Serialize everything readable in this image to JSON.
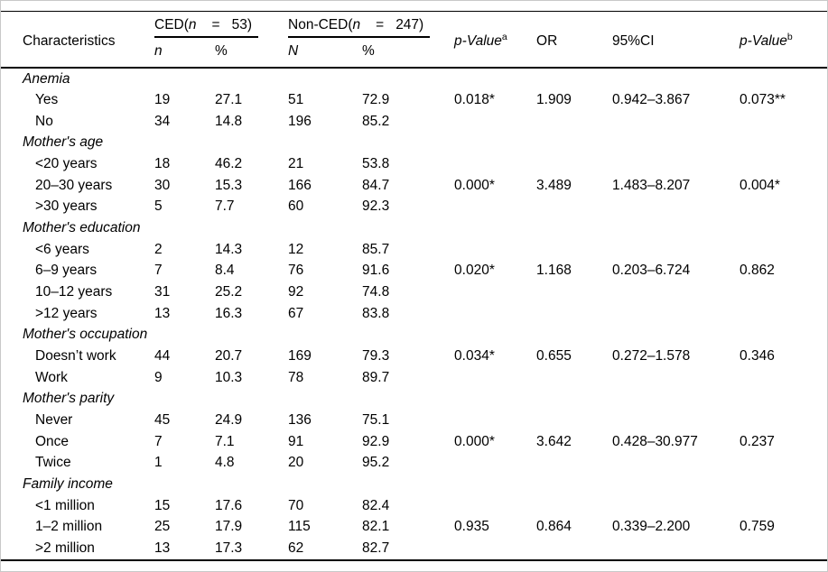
{
  "colors": {
    "background": "#ffffff",
    "frame": "#c9c9c9",
    "rule": "#000000",
    "text": "#000000"
  },
  "header": {
    "characteristics": "Characteristics",
    "group_ced": {
      "name": "CED(",
      "var": "n",
      "eq": "=",
      "count": "53)"
    },
    "group_nonced": {
      "name": "Non-CED(",
      "var": "n",
      "eq": "=",
      "count": "247)"
    },
    "p_value_a": {
      "label": "p-Value",
      "sup": "a"
    },
    "or": "OR",
    "ci": "95%CI",
    "p_value_b": {
      "label": "p-Value",
      "sup": "b"
    },
    "sub_n_ced": "n",
    "sub_pct_ced": "%",
    "sub_n_nonced": "N",
    "sub_pct_nonced": "%"
  },
  "sections": [
    {
      "label": "Anemia",
      "rows": [
        {
          "label": "Yes",
          "n": "19",
          "pct": "27.1",
          "N": "51",
          "Npct": "72.9",
          "p_a": "0.018*",
          "or": "1.909",
          "ci": "0.942–3.867",
          "p_b": "0.073**"
        },
        {
          "label": "No",
          "n": "34",
          "pct": "14.8",
          "N": "196",
          "Npct": "85.2",
          "p_a": "",
          "or": "",
          "ci": "",
          "p_b": ""
        }
      ]
    },
    {
      "label": "Mother's age",
      "rows": [
        {
          "label": "<20 years",
          "n": "18",
          "pct": "46.2",
          "N": "21",
          "Npct": "53.8",
          "p_a": "",
          "or": "",
          "ci": "",
          "p_b": ""
        },
        {
          "label": "20–30 years",
          "n": "30",
          "pct": "15.3",
          "N": "166",
          "Npct": "84.7",
          "p_a": "0.000*",
          "or": "3.489",
          "ci": "1.483–8.207",
          "p_b": "0.004*"
        },
        {
          "label": ">30 years",
          "n": "5",
          "pct": "7.7",
          "N": "60",
          "Npct": "92.3",
          "p_a": "",
          "or": "",
          "ci": "",
          "p_b": ""
        }
      ]
    },
    {
      "label": "Mother's education",
      "rows": [
        {
          "label": "<6 years",
          "n": "2",
          "pct": "14.3",
          "N": "12",
          "Npct": "85.7",
          "p_a": "",
          "or": "",
          "ci": "",
          "p_b": ""
        },
        {
          "label": "6–9 years",
          "n": "7",
          "pct": "8.4",
          "N": "76",
          "Npct": "91.6",
          "p_a": "0.020*",
          "or": "1.168",
          "ci": "0.203–6.724",
          "p_b": "0.862"
        },
        {
          "label": "10–12 years",
          "n": "31",
          "pct": "25.2",
          "N": "92",
          "Npct": "74.8",
          "p_a": "",
          "or": "",
          "ci": "",
          "p_b": ""
        },
        {
          "label": ">12 years",
          "n": "13",
          "pct": "16.3",
          "N": "67",
          "Npct": "83.8",
          "p_a": "",
          "or": "",
          "ci": "",
          "p_b": ""
        }
      ]
    },
    {
      "label": "Mother's occupation",
      "rows": [
        {
          "label": "Doesn’t work",
          "n": "44",
          "pct": "20.7",
          "N": "169",
          "Npct": "79.3",
          "p_a": "0.034*",
          "or": "0.655",
          "ci": "0.272–1.578",
          "p_b": "0.346"
        },
        {
          "label": "Work",
          "n": "9",
          "pct": "10.3",
          "N": "78",
          "Npct": "89.7",
          "p_a": "",
          "or": "",
          "ci": "",
          "p_b": ""
        }
      ]
    },
    {
      "label": "Mother's parity",
      "rows": [
        {
          "label": "Never",
          "n": "45",
          "pct": "24.9",
          "N": "136",
          "Npct": "75.1",
          "p_a": "",
          "or": "",
          "ci": "",
          "p_b": ""
        },
        {
          "label": "Once",
          "n": "7",
          "pct": "7.1",
          "N": "91",
          "Npct": "92.9",
          "p_a": "0.000*",
          "or": "3.642",
          "ci": "0.428–30.977",
          "p_b": "0.237"
        },
        {
          "label": "Twice",
          "n": "1",
          "pct": "4.8",
          "N": "20",
          "Npct": "95.2",
          "p_a": "",
          "or": "",
          "ci": "",
          "p_b": ""
        }
      ]
    },
    {
      "label": "Family income",
      "rows": [
        {
          "label": "<1 million",
          "n": "15",
          "pct": "17.6",
          "N": "70",
          "Npct": "82.4",
          "p_a": "",
          "or": "",
          "ci": "",
          "p_b": ""
        },
        {
          "label": "1–2 million",
          "n": "25",
          "pct": "17.9",
          "N": "115",
          "Npct": "82.1",
          "p_a": "0.935",
          "or": "0.864",
          "ci": "0.339–2.200",
          "p_b": "0.759"
        },
        {
          "label": ">2 million",
          "n": "13",
          "pct": "17.3",
          "N": "62",
          "Npct": "82.7",
          "p_a": "",
          "or": "",
          "ci": "",
          "p_b": ""
        }
      ]
    }
  ]
}
